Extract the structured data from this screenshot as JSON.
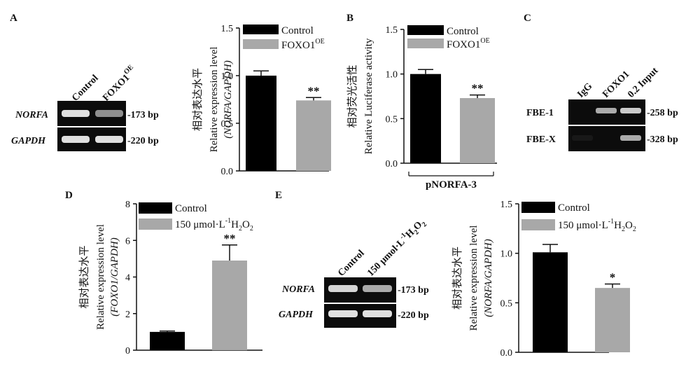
{
  "colors": {
    "control": "#000000",
    "treated": "#a8a8a8",
    "gel_bg": "#0c0c0c",
    "band": "#e0e0e0"
  },
  "panels": {
    "A": {
      "letter": "A",
      "gel": {
        "lanes": [
          "Control",
          "FOXO1"
        ],
        "lane2_sup": "OE",
        "rows": [
          {
            "gene": "NORFA",
            "size": "-173 bp",
            "intensity": [
              1.0,
              0.62
            ]
          },
          {
            "gene": "GAPDH",
            "size": "-220 bp",
            "intensity": [
              1.0,
              1.0
            ]
          }
        ]
      }
    },
    "B": {
      "letter": "B"
    },
    "C": {
      "letter": "C",
      "gel": {
        "lanes": [
          "IgG",
          "FOXO1",
          "0.2 Input"
        ],
        "rows": [
          {
            "label": "FBE-1",
            "size": "-258 bp",
            "intensity": [
              0.0,
              0.75,
              0.9
            ]
          },
          {
            "label": "FBE-X",
            "size": "-328 bp",
            "intensity": [
              0.06,
              0.0,
              0.75
            ]
          }
        ]
      }
    },
    "D": {
      "letter": "D"
    },
    "E": {
      "letter": "E",
      "gel": {
        "lanes": [
          "Control",
          "150 μmol·L"
        ],
        "lane2_sup": "-1",
        "lane2_tail": "H",
        "lane2_sub": "2",
        "lane2_tail2": "O",
        "lane2_sub2": "2",
        "rows": [
          {
            "gene": "NORFA",
            "size": "-173 bp",
            "intensity": [
              0.95,
              0.75
            ]
          },
          {
            "gene": "GAPDH",
            "size": "-220 bp",
            "intensity": [
              1.0,
              1.0
            ]
          }
        ]
      }
    }
  },
  "chart_data": [
    {
      "id": "A",
      "type": "bar",
      "categories": [
        "Control",
        "FOXO1"
      ],
      "values": [
        1.0,
        0.74
      ],
      "errors": [
        0.05,
        0.03
      ],
      "significance": [
        "",
        "**"
      ],
      "ylabel_cn": "相对表达水平",
      "ylabel_en": "Relative expression level",
      "ylabel_paren": "(NORFA/GAPDH)",
      "ylim": [
        0,
        1.5
      ],
      "yticks": [
        "0.0",
        "0.5",
        "1.0",
        "1.5"
      ],
      "legend": [
        {
          "label": "Control"
        },
        {
          "label": "FOXO1",
          "sup": "OE"
        }
      ],
      "xlabel": ""
    },
    {
      "id": "B",
      "type": "bar",
      "categories": [
        "Control",
        "FOXO1"
      ],
      "values": [
        1.0,
        0.73
      ],
      "errors": [
        0.05,
        0.035
      ],
      "significance": [
        "",
        "**"
      ],
      "ylabel_cn": "相对荧光活性",
      "ylabel_en": "Relative Luciferase activity",
      "ylim": [
        0,
        1.5
      ],
      "yticks": [
        "0.0",
        "0.5",
        "1.0",
        "1.5"
      ],
      "legend": [
        {
          "label": "Control"
        },
        {
          "label": "FOXO1",
          "sup": "OE"
        }
      ],
      "xlabel": "pNORFA-3"
    },
    {
      "id": "D",
      "type": "bar",
      "categories": [
        "Control",
        "150 μmol·L-1 H2O2"
      ],
      "values": [
        1.0,
        4.9
      ],
      "errors": [
        0.05,
        0.85
      ],
      "significance": [
        "",
        "**"
      ],
      "ylabel_cn": "相对表达水平",
      "ylabel_en": "Relative expression level",
      "ylabel_paren": "(FOXO1/GAPDH)",
      "ylim": [
        0,
        8
      ],
      "yticks": [
        "0",
        "2",
        "4",
        "6",
        "8"
      ],
      "legend": [
        {
          "label": "Control"
        },
        {
          "label": "150 μmol·L",
          "sup": "-1",
          "tail": "H",
          "sub": "2",
          "tail2": "O",
          "sub2": "2"
        }
      ],
      "xlabel": ""
    },
    {
      "id": "E",
      "type": "bar",
      "categories": [
        "Control",
        "150 μmol·L-1 H2O2"
      ],
      "values": [
        1.01,
        0.65
      ],
      "errors": [
        0.08,
        0.04
      ],
      "significance": [
        "",
        "*"
      ],
      "ylabel_cn": "相对表达水平",
      "ylabel_en": "Relative expression level",
      "ylabel_paren": "(NORFA/GAPDH)",
      "ylim": [
        0,
        1.5
      ],
      "yticks": [
        "0.0",
        "0.5",
        "1.0",
        "1.5"
      ],
      "legend": [
        {
          "label": "Control"
        },
        {
          "label": "150 μmol·L",
          "sup": "-1",
          "tail": "H",
          "sub": "2",
          "tail2": "O",
          "sub2": "2"
        }
      ],
      "xlabel": ""
    }
  ]
}
